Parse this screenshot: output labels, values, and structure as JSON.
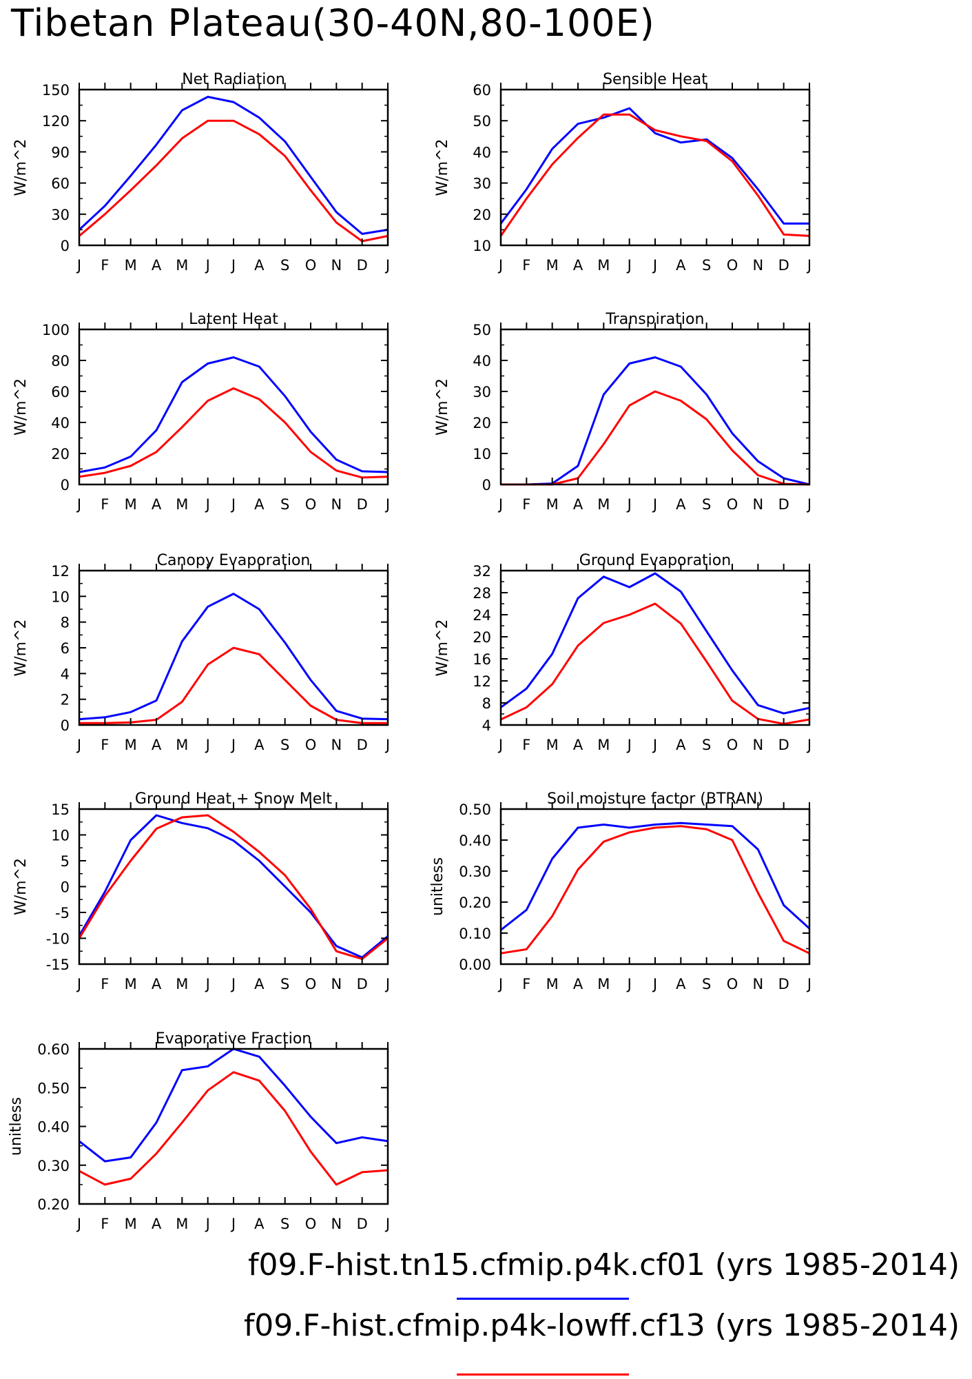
{
  "title": "Tibetan Plateau(30-40N,80-100E)",
  "colors": {
    "series1": "#0000ff",
    "series2": "#ff0000",
    "axis": "#000000"
  },
  "legend": [
    {
      "label": "f09.F-hist.tn15.cfmip.p4k.cf01 (yrs 1985-2014)",
      "color": "#0000ff"
    },
    {
      "label": "f09.F-hist.cfmip.p4k-lowff.cf13 (yrs 1985-2014)",
      "color": "#ff0000"
    }
  ],
  "chart_data": [
    {
      "type": "line",
      "title": "Net Radiation",
      "ylabel": "W/m^2",
      "x": [
        "J",
        "F",
        "M",
        "A",
        "M",
        "J",
        "J",
        "A",
        "S",
        "O",
        "N",
        "D",
        "J"
      ],
      "ylim": [
        0,
        150
      ],
      "yticks": [
        "0",
        "30",
        "60",
        "90",
        "120",
        "150"
      ],
      "series": [
        {
          "color": "#0000ff",
          "values": [
            15,
            38,
            67,
            97,
            130,
            143,
            138,
            123,
            100,
            66,
            32,
            11,
            15
          ]
        },
        {
          "color": "#ff0000",
          "values": [
            9,
            30,
            53,
            77,
            103,
            120,
            120,
            107,
            86,
            53,
            22,
            4,
            9
          ]
        }
      ]
    },
    {
      "type": "line",
      "title": "Sensible Heat",
      "ylabel": "W/m^2",
      "x": [
        "J",
        "F",
        "M",
        "A",
        "M",
        "J",
        "J",
        "A",
        "S",
        "O",
        "N",
        "D",
        "J"
      ],
      "ylim": [
        10,
        60
      ],
      "yticks": [
        "10",
        "20",
        "30",
        "40",
        "50",
        "60"
      ],
      "series": [
        {
          "color": "#0000ff",
          "values": [
            17,
            28,
            41,
            49,
            51,
            54,
            46,
            43,
            44,
            38,
            28,
            17,
            17
          ]
        },
        {
          "color": "#ff0000",
          "values": [
            13,
            25,
            36,
            44.5,
            52,
            52,
            47,
            45,
            43.5,
            37,
            26,
            13.5,
            13
          ]
        }
      ]
    },
    {
      "type": "line",
      "title": "Latent Heat",
      "ylabel": "W/m^2",
      "x": [
        "J",
        "F",
        "M",
        "A",
        "M",
        "J",
        "J",
        "A",
        "S",
        "O",
        "N",
        "D",
        "J"
      ],
      "ylim": [
        0,
        100
      ],
      "yticks": [
        "0",
        "20",
        "40",
        "60",
        "80",
        "100"
      ],
      "series": [
        {
          "color": "#0000ff",
          "values": [
            8,
            11,
            18,
            35,
            66,
            78,
            82,
            76,
            57,
            34,
            16,
            8.5,
            8
          ]
        },
        {
          "color": "#ff0000",
          "values": [
            5,
            7.5,
            12,
            21,
            37,
            54,
            62,
            55,
            40,
            21,
            9,
            4.5,
            5
          ]
        }
      ]
    },
    {
      "type": "line",
      "title": "Transpiration",
      "ylabel": "W/m^2",
      "x": [
        "J",
        "F",
        "M",
        "A",
        "M",
        "J",
        "J",
        "A",
        "S",
        "O",
        "N",
        "D",
        "J"
      ],
      "ylim": [
        0,
        50
      ],
      "yticks": [
        "0",
        "10",
        "20",
        "30",
        "40",
        "50"
      ],
      "series": [
        {
          "color": "#0000ff",
          "values": [
            0,
            0,
            0.3,
            6,
            29,
            39,
            41,
            38,
            29,
            16.5,
            7.5,
            2,
            0
          ]
        },
        {
          "color": "#ff0000",
          "values": [
            0,
            0,
            0,
            2,
            13,
            25.5,
            30,
            27,
            21,
            11,
            3,
            0.2,
            0
          ]
        }
      ]
    },
    {
      "type": "line",
      "title": "Canopy Evaporation",
      "ylabel": "W/m^2",
      "x": [
        "J",
        "F",
        "M",
        "A",
        "M",
        "J",
        "J",
        "A",
        "S",
        "O",
        "N",
        "D",
        "J"
      ],
      "ylim": [
        0,
        12
      ],
      "yticks": [
        "0",
        "2",
        "4",
        "6",
        "8",
        "10",
        "12"
      ],
      "series": [
        {
          "color": "#0000ff",
          "values": [
            0.45,
            0.6,
            1,
            1.9,
            6.5,
            9.2,
            10.2,
            9,
            6.4,
            3.5,
            1.1,
            0.5,
            0.45
          ]
        },
        {
          "color": "#ff0000",
          "values": [
            0.15,
            0.15,
            0.2,
            0.4,
            1.8,
            4.7,
            6,
            5.5,
            3.5,
            1.5,
            0.4,
            0.15,
            0.15
          ]
        }
      ]
    },
    {
      "type": "line",
      "title": "Ground Evaporation",
      "ylabel": "W/m^2",
      "x": [
        "J",
        "F",
        "M",
        "A",
        "M",
        "J",
        "J",
        "A",
        "S",
        "O",
        "N",
        "D",
        "J"
      ],
      "ylim": [
        4,
        32
      ],
      "yticks": [
        "4",
        "8",
        "12",
        "16",
        "20",
        "24",
        "28",
        "32"
      ],
      "series": [
        {
          "color": "#0000ff",
          "values": [
            7.2,
            10.6,
            16.9,
            27,
            30.9,
            29,
            31.5,
            28.2,
            21,
            13.9,
            7.6,
            6.1,
            7.1
          ]
        },
        {
          "color": "#ff0000",
          "values": [
            5,
            7.2,
            11.4,
            18.4,
            22.5,
            24,
            26,
            22.4,
            15.5,
            8.4,
            5.1,
            4.2,
            5
          ]
        }
      ]
    },
    {
      "type": "line",
      "title": "Ground Heat + Snow Melt",
      "ylabel": "W/m^2",
      "x": [
        "J",
        "F",
        "M",
        "A",
        "M",
        "J",
        "J",
        "A",
        "S",
        "O",
        "N",
        "D",
        "J"
      ],
      "ylim": [
        -15,
        15
      ],
      "yticks": [
        "-15",
        "-10",
        "-5",
        "0",
        "5",
        "10",
        "15"
      ],
      "series": [
        {
          "color": "#0000ff",
          "values": [
            -9.5,
            -1,
            9,
            13.8,
            12.3,
            11.3,
            8.9,
            5,
            0,
            -5,
            -11.5,
            -13.7,
            -9.6
          ]
        },
        {
          "color": "#ff0000",
          "values": [
            -10,
            -1.8,
            5,
            11.2,
            13.4,
            13.8,
            10.6,
            6.7,
            2.2,
            -4.3,
            -12.5,
            -14,
            -10
          ]
        }
      ]
    },
    {
      "type": "line",
      "title": "Soil moisture factor (BTRAN)",
      "ylabel": "unitless",
      "x": [
        "J",
        "F",
        "M",
        "A",
        "M",
        "J",
        "J",
        "A",
        "S",
        "O",
        "N",
        "D",
        "J"
      ],
      "ylim": [
        0,
        0.5
      ],
      "yticks": [
        "0.00",
        "0.10",
        "0.20",
        "0.30",
        "0.40",
        "0.50"
      ],
      "series": [
        {
          "color": "#0000ff",
          "values": [
            0.11,
            0.175,
            0.34,
            0.44,
            0.45,
            0.44,
            0.45,
            0.455,
            0.45,
            0.445,
            0.37,
            0.19,
            0.115
          ]
        },
        {
          "color": "#ff0000",
          "values": [
            0.035,
            0.048,
            0.155,
            0.305,
            0.395,
            0.425,
            0.44,
            0.445,
            0.435,
            0.4,
            0.23,
            0.075,
            0.035
          ]
        }
      ]
    },
    {
      "type": "line",
      "title": "Evaporative Fraction",
      "ylabel": "unitless",
      "x": [
        "J",
        "F",
        "M",
        "A",
        "M",
        "J",
        "J",
        "A",
        "S",
        "O",
        "N",
        "D",
        "J"
      ],
      "ylim": [
        0.2,
        0.6
      ],
      "yticks": [
        "0.20",
        "0.30",
        "0.40",
        "0.50",
        "0.60"
      ],
      "series": [
        {
          "color": "#0000ff",
          "values": [
            0.362,
            0.31,
            0.32,
            0.41,
            0.545,
            0.555,
            0.6,
            0.58,
            0.505,
            0.425,
            0.357,
            0.372,
            0.362
          ]
        },
        {
          "color": "#ff0000",
          "values": [
            0.285,
            0.25,
            0.265,
            0.33,
            0.41,
            0.493,
            0.54,
            0.518,
            0.44,
            0.335,
            0.25,
            0.282,
            0.287
          ]
        }
      ]
    }
  ]
}
